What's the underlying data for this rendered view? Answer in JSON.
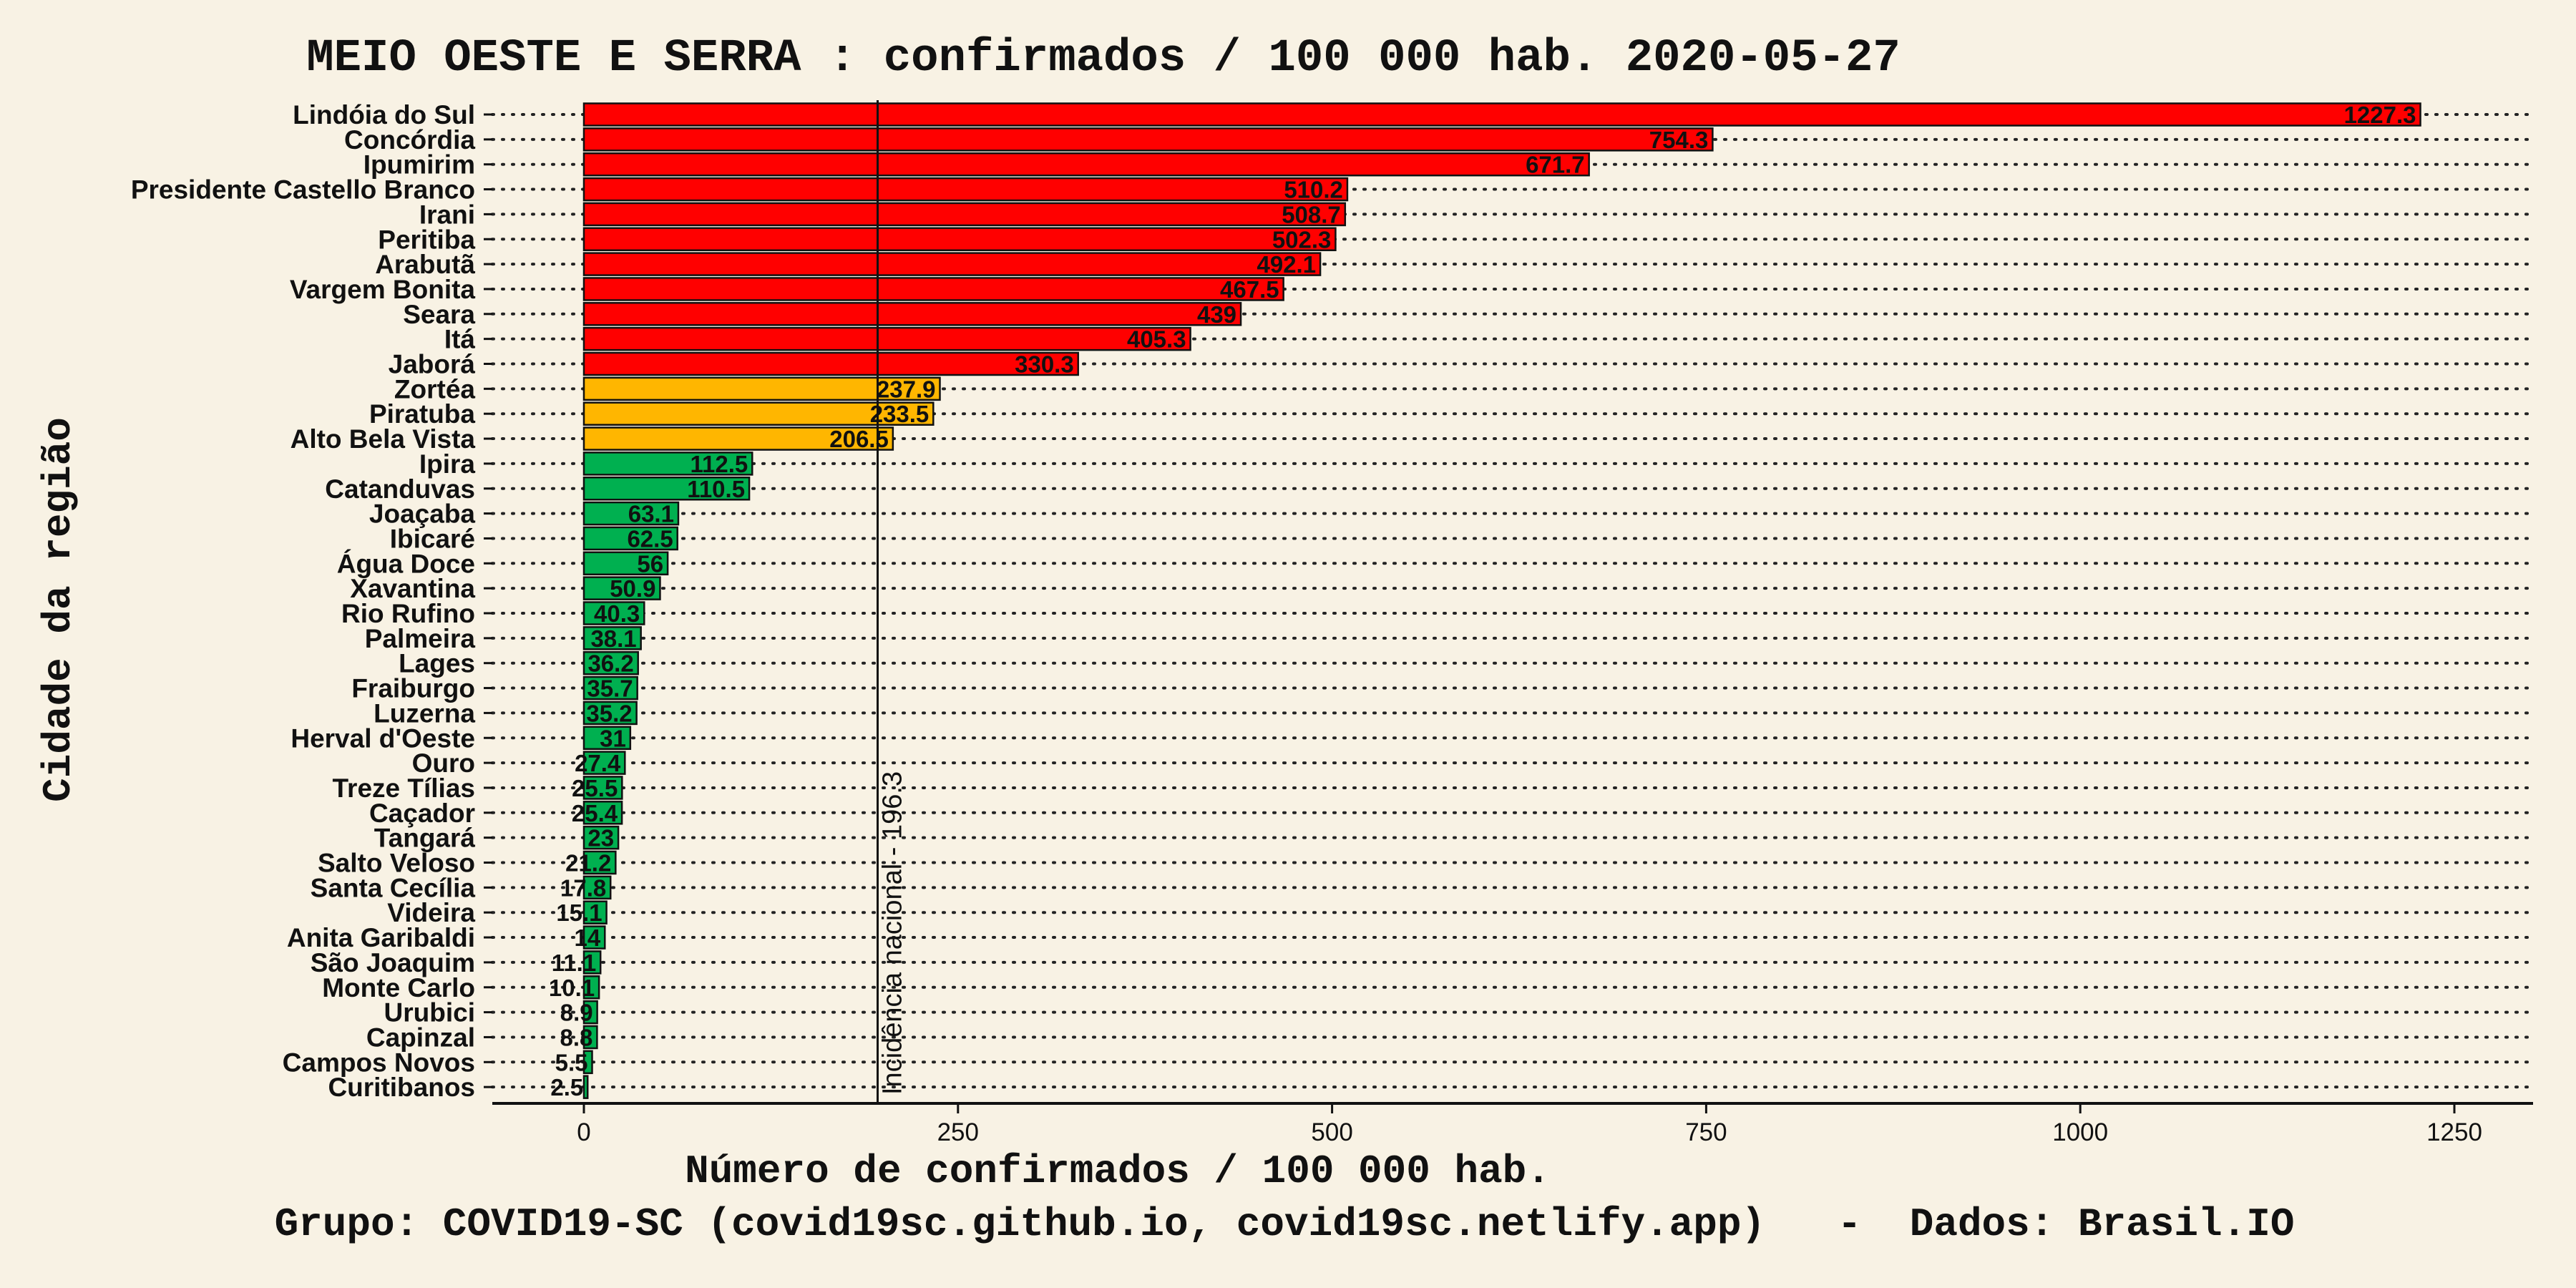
{
  "chart_data": {
    "type": "bar",
    "orientation": "horizontal",
    "title": "MEIO OESTE E SERRA : confirmados / 100 000 hab. 2020-05-27",
    "xlabel": "Número de confirmados / 100 000 hab.",
    "ylabel": "Cidade da região",
    "caption": "Grupo: COVID19-SC (covid19sc.github.io, covid19sc.netlify.app)   -  Dados: Brasil.IO",
    "xlim": [
      -60,
      1290
    ],
    "xticks": [
      0,
      250,
      500,
      750,
      1000,
      1250
    ],
    "grid": "dotted horizontal lines per category",
    "reference_line": {
      "value": 196.3,
      "label": "Incidência nacional - 196.3"
    },
    "colors": {
      "high": "#ff0000",
      "medium": "#ffb600",
      "low": "#00b050",
      "background": "#f8f2e4"
    },
    "categories": [
      "Lindóia do Sul",
      "Concórdia",
      "Ipumirim",
      "Presidente Castello Branco",
      "Irani",
      "Peritiba",
      "Arabutã",
      "Vargem Bonita",
      "Seara",
      "Itá",
      "Jaborá",
      "Zortéa",
      "Piratuba",
      "Alto Bela Vista",
      "Ipira",
      "Catanduvas",
      "Joaçaba",
      "Ibicaré",
      "Água Doce",
      "Xavantina",
      "Rio Rufino",
      "Palmeira",
      "Lages",
      "Fraiburgo",
      "Luzerna",
      "Herval d'Oeste",
      "Ouro",
      "Treze Tílias",
      "Caçador",
      "Tangará",
      "Salto Veloso",
      "Santa Cecília",
      "Videira",
      "Anita Garibaldi",
      "São Joaquim",
      "Monte Carlo",
      "Urubici",
      "Capinzal",
      "Campos Novos",
      "Curitibanos"
    ],
    "values": [
      1227.3,
      754.3,
      671.7,
      510.2,
      508.7,
      502.3,
      492.1,
      467.5,
      439,
      405.3,
      330.3,
      237.9,
      233.5,
      206.5,
      112.5,
      110.5,
      63.1,
      62.5,
      56,
      50.9,
      40.3,
      38.1,
      36.2,
      35.7,
      35.2,
      31,
      27.4,
      25.5,
      25.4,
      23,
      21.2,
      17.8,
      15.1,
      14,
      11.1,
      10.1,
      8.9,
      8.8,
      5.5,
      2.5
    ],
    "levels": [
      "high",
      "high",
      "high",
      "high",
      "high",
      "high",
      "high",
      "high",
      "high",
      "high",
      "high",
      "medium",
      "medium",
      "medium",
      "low",
      "low",
      "low",
      "low",
      "low",
      "low",
      "low",
      "low",
      "low",
      "low",
      "low",
      "low",
      "low",
      "low",
      "low",
      "low",
      "low",
      "low",
      "low",
      "low",
      "low",
      "low",
      "low",
      "low",
      "low",
      "low"
    ]
  }
}
